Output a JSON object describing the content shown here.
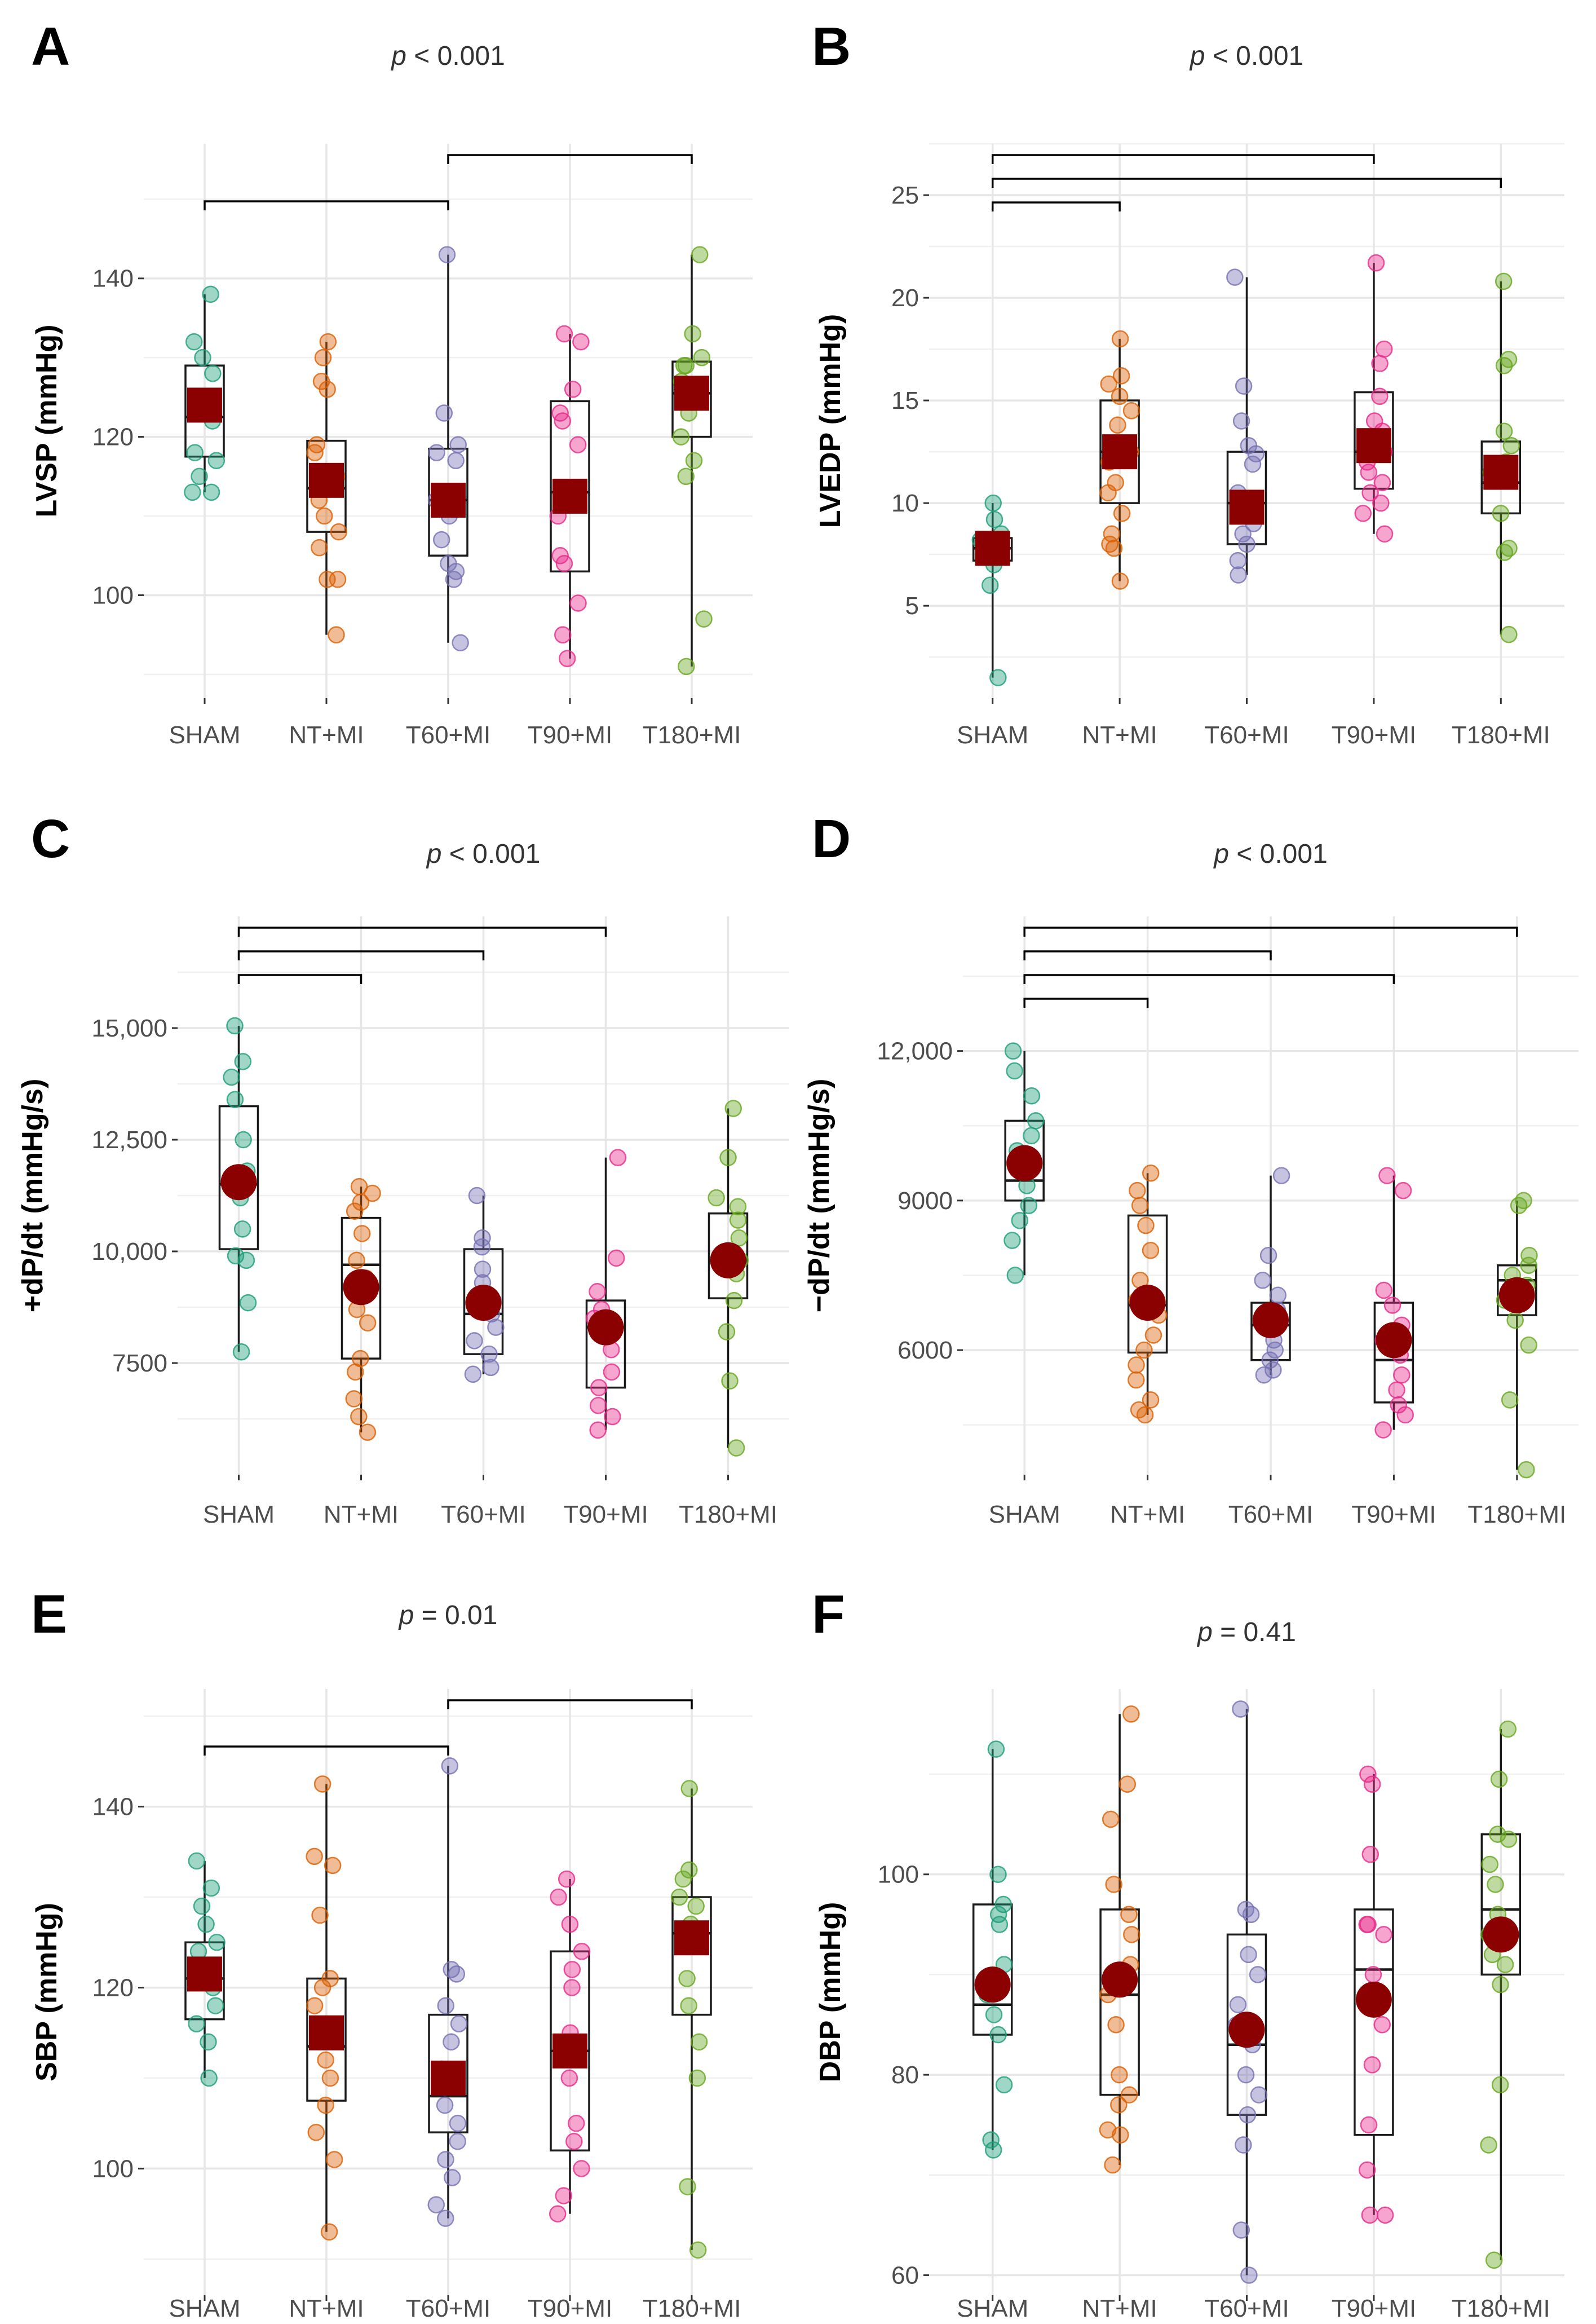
{
  "figure": {
    "group_colors": {
      "SHAM": "#1b9e77",
      "NT+MI": "#d95f02",
      "T60+MI": "#7570b3",
      "T90+MI": "#e7298a",
      "T180+MI": "#66a61e"
    },
    "mean_marker_color": "#8b0000"
  },
  "chart_data": [
    {
      "panel": "A",
      "type": "boxplot",
      "p_label": "p < 0.001",
      "ylabel": "LVSP (mmHg)",
      "categories": [
        "SHAM",
        "NT+MI",
        "T60+MI",
        "T90+MI",
        "T180+MI"
      ],
      "ylim": [
        87,
        157
      ],
      "yticks": [
        100,
        120,
        140
      ],
      "ytick_labels": [
        "100",
        "120",
        "140"
      ],
      "mean_shape": "square",
      "boxes": [
        {
          "group": "SHAM",
          "min": 113,
          "q1": 117.5,
          "median": 122.5,
          "q3": 129,
          "max": 138,
          "mean": 124
        },
        {
          "group": "NT+MI",
          "min": 95,
          "q1": 108,
          "median": 113.5,
          "q3": 119.5,
          "max": 132,
          "mean": 114.5
        },
        {
          "group": "T60+MI",
          "min": 94,
          "q1": 105,
          "median": 112,
          "q3": 118.5,
          "max": 143,
          "mean": 112
        },
        {
          "group": "T90+MI",
          "min": 92,
          "q1": 103,
          "median": 113,
          "q3": 124.5,
          "max": 133,
          "mean": 112.5
        },
        {
          "group": "T180+MI",
          "min": 91,
          "q1": 120,
          "median": 125.5,
          "q3": 129.5,
          "max": 143,
          "mean": 125.5
        }
      ],
      "points": [
        [
          138,
          132,
          130,
          128,
          125,
          122,
          118,
          117,
          115,
          113,
          113
        ],
        [
          132,
          130,
          127,
          126,
          119,
          118,
          115,
          112,
          110,
          108,
          106,
          102,
          102,
          95
        ],
        [
          143,
          123,
          119,
          118,
          117,
          112,
          110,
          107,
          104,
          103,
          102,
          94
        ],
        [
          133,
          132,
          126,
          123,
          122,
          119,
          113,
          110,
          105,
          104,
          99,
          95,
          92
        ],
        [
          143,
          133,
          130,
          129,
          129,
          127,
          123,
          120,
          117,
          115,
          97,
          91
        ]
      ],
      "comparisons": [
        [
          0,
          2
        ],
        [
          2,
          4
        ]
      ]
    },
    {
      "panel": "B",
      "type": "boxplot",
      "p_label": "p < 0.001",
      "ylabel": "LVEDP (mmHg)",
      "categories": [
        "SHAM",
        "NT+MI",
        "T60+MI",
        "T90+MI",
        "T180+MI"
      ],
      "ylim": [
        0.5,
        27.5
      ],
      "yticks": [
        5,
        10,
        15,
        20,
        25
      ],
      "ytick_labels": [
        "5",
        "10",
        "15",
        "20",
        "25"
      ],
      "mean_shape": "square",
      "boxes": [
        {
          "group": "SHAM",
          "min": 1.5,
          "q1": 7.2,
          "median": 7.8,
          "q3": 8.3,
          "max": 10,
          "mean": 7.8
        },
        {
          "group": "NT+MI",
          "min": 6.2,
          "q1": 10,
          "median": 12.5,
          "q3": 15,
          "max": 18,
          "mean": 12.5
        },
        {
          "group": "T60+MI",
          "min": 6.5,
          "q1": 8,
          "median": 10,
          "q3": 12.5,
          "max": 21,
          "mean": 9.8
        },
        {
          "group": "T90+MI",
          "min": 8.5,
          "q1": 10.7,
          "median": 12.5,
          "q3": 15.4,
          "max": 21.7,
          "mean": 12.8
        },
        {
          "group": "T180+MI",
          "min": 3.6,
          "q1": 9.5,
          "median": 11,
          "q3": 13,
          "max": 20.8,
          "mean": 11.5
        }
      ],
      "points": [
        [
          10,
          9.2,
          8.5,
          8.2,
          8,
          7.8,
          7.5,
          7,
          6,
          1.5
        ],
        [
          18,
          16.2,
          15.8,
          15.2,
          14.5,
          13.8,
          12.5,
          12,
          11,
          10.5,
          9.5,
          8.5,
          8,
          7.8,
          6.2
        ],
        [
          21,
          15.7,
          14,
          12.8,
          12.4,
          11.9,
          10.5,
          9.8,
          9,
          8.5,
          8,
          7.2,
          6.5
        ],
        [
          21.7,
          17.5,
          16.8,
          15.2,
          14,
          13.5,
          12.5,
          12,
          11.5,
          11,
          10.5,
          10,
          9.5,
          8.5
        ],
        [
          20.8,
          17,
          16.7,
          13.5,
          12.8,
          12,
          11.5,
          9.5,
          7.8,
          7.6,
          3.6
        ]
      ],
      "comparisons": [
        [
          0,
          1
        ],
        [
          0,
          4
        ],
        [
          0,
          3
        ]
      ]
    },
    {
      "panel": "C",
      "type": "boxplot",
      "p_label": "p < 0.001",
      "ylabel": "+dP/dt (mmHg/s)",
      "categories": [
        "SHAM",
        "NT+MI",
        "T60+MI",
        "T90+MI",
        "T180+MI"
      ],
      "ylim": [
        5000,
        17500
      ],
      "yticks": [
        7500,
        10000,
        12500,
        15000
      ],
      "ytick_labels": [
        "7500",
        "10,000",
        "12,500",
        "15,000"
      ],
      "mean_shape": "circle",
      "boxes": [
        {
          "group": "SHAM",
          "min": 7750,
          "q1": 10050,
          "median": 11500,
          "q3": 13250,
          "max": 15050,
          "mean": 11550
        },
        {
          "group": "NT+MI",
          "min": 5950,
          "q1": 7600,
          "median": 9700,
          "q3": 10750,
          "max": 11450,
          "mean": 9200
        },
        {
          "group": "T60+MI",
          "min": 7250,
          "q1": 7700,
          "median": 8600,
          "q3": 10050,
          "max": 11250,
          "mean": 8850
        },
        {
          "group": "T90+MI",
          "min": 6000,
          "q1": 6950,
          "median": 8300,
          "q3": 8900,
          "max": 12100,
          "mean": 8300
        },
        {
          "group": "T180+MI",
          "min": 5600,
          "q1": 8950,
          "median": 9800,
          "q3": 10850,
          "max": 13200,
          "mean": 9800
        }
      ],
      "points": [
        [
          15050,
          14250,
          13900,
          13400,
          12500,
          11800,
          11200,
          10500,
          9900,
          9800,
          8850,
          7750
        ],
        [
          11450,
          11300,
          11100,
          10900,
          10400,
          9800,
          9400,
          9100,
          8700,
          8400,
          7600,
          7300,
          6700,
          6300,
          5950
        ],
        [
          11250,
          10300,
          10100,
          9600,
          9300,
          8900,
          8600,
          8300,
          8000,
          7700,
          7400,
          7250
        ],
        [
          12100,
          9850,
          9100,
          8700,
          8500,
          8200,
          7800,
          7300,
          6950,
          6550,
          6300,
          6000
        ],
        [
          13200,
          12100,
          11200,
          11000,
          10700,
          10300,
          9800,
          9500,
          8900,
          8200,
          7100,
          5600
        ]
      ],
      "comparisons": [
        [
          0,
          1
        ],
        [
          0,
          2
        ],
        [
          0,
          3
        ]
      ]
    },
    {
      "panel": "D",
      "type": "boxplot",
      "p_label": "p < 0.001",
      "ylabel": "−dP/dt (mmHg/s)",
      "categories": [
        "SHAM",
        "NT+MI",
        "T60+MI",
        "T90+MI",
        "T180+MI"
      ],
      "ylim": [
        3500,
        14700
      ],
      "yticks": [
        6000,
        9000,
        12000
      ],
      "ytick_labels": [
        "6000",
        "9000",
        "12,000"
      ],
      "mean_shape": "circle",
      "boxes": [
        {
          "group": "SHAM",
          "min": 7500,
          "q1": 9000,
          "median": 9400,
          "q3": 10600,
          "max": 12000,
          "mean": 9750
        },
        {
          "group": "NT+MI",
          "min": 4700,
          "q1": 5950,
          "median": 6900,
          "q3": 8700,
          "max": 9550,
          "mean": 6950
        },
        {
          "group": "T60+MI",
          "min": 5500,
          "q1": 5800,
          "median": 6500,
          "q3": 6950,
          "max": 9500,
          "mean": 6600
        },
        {
          "group": "T90+MI",
          "min": 4400,
          "q1": 4950,
          "median": 5800,
          "q3": 6950,
          "max": 9500,
          "mean": 6200
        },
        {
          "group": "T180+MI",
          "min": 3600,
          "q1": 6700,
          "median": 7400,
          "q3": 7700,
          "max": 9000,
          "mean": 7100
        }
      ],
      "points": [
        [
          12000,
          11600,
          11100,
          10600,
          10300,
          10000,
          9700,
          9300,
          8900,
          8600,
          8200,
          7500
        ],
        [
          9550,
          9200,
          8900,
          8500,
          8000,
          7400,
          7000,
          6700,
          6300,
          6000,
          5700,
          5400,
          5000,
          4800,
          4700
        ],
        [
          9500,
          7900,
          7400,
          7100,
          6800,
          6500,
          6200,
          6000,
          5800,
          5600,
          5500
        ],
        [
          9500,
          9200,
          7200,
          6900,
          6500,
          6200,
          5900,
          5500,
          5200,
          4900,
          4700,
          4400
        ],
        [
          9000,
          8900,
          7900,
          7700,
          7500,
          7300,
          7200,
          7000,
          6600,
          6100,
          5000,
          3600
        ]
      ],
      "comparisons": [
        [
          0,
          1
        ],
        [
          0,
          3
        ],
        [
          0,
          2
        ],
        [
          0,
          4
        ]
      ]
    },
    {
      "panel": "E",
      "type": "boxplot",
      "p_label": "p = 0.01",
      "ylabel": "SBP (mmHg)",
      "categories": [
        "SHAM",
        "NT+MI",
        "T60+MI",
        "T90+MI",
        "T180+MI"
      ],
      "ylim": [
        86,
        153
      ],
      "yticks": [
        100,
        120,
        140
      ],
      "ytick_labels": [
        "100",
        "120",
        "140"
      ],
      "mean_shape": "square",
      "boxes": [
        {
          "group": "SHAM",
          "min": 110,
          "q1": 116.5,
          "median": 121,
          "q3": 125,
          "max": 134,
          "mean": 121.5
        },
        {
          "group": "NT+MI",
          "min": 93,
          "q1": 107.5,
          "median": 113.5,
          "q3": 121,
          "max": 142.5,
          "mean": 115
        },
        {
          "group": "T60+MI",
          "min": 94.5,
          "q1": 104,
          "median": 108,
          "q3": 117,
          "max": 144.5,
          "mean": 110
        },
        {
          "group": "T90+MI",
          "min": 95,
          "q1": 102,
          "median": 113,
          "q3": 124,
          "max": 132,
          "mean": 113
        },
        {
          "group": "T180+MI",
          "min": 91,
          "q1": 117,
          "median": 126,
          "q3": 130,
          "max": 142,
          "mean": 125.5
        }
      ],
      "points": [
        [
          134,
          131,
          129,
          127,
          125,
          124,
          122,
          120,
          118,
          116,
          114,
          110
        ],
        [
          142.5,
          134.5,
          133.5,
          128,
          121,
          120,
          118,
          115,
          112,
          110,
          107,
          104,
          101,
          93
        ],
        [
          144.5,
          122,
          121.5,
          118,
          116,
          114,
          111,
          109,
          107,
          105,
          103,
          101,
          99,
          96,
          94.5
        ],
        [
          132,
          130,
          127,
          124,
          122,
          120,
          115,
          110,
          105,
          103,
          100,
          97,
          95
        ],
        [
          142,
          133,
          132,
          130,
          129,
          127,
          125,
          121,
          118,
          114,
          110,
          98,
          91
        ]
      ],
      "comparisons": [
        [
          0,
          2
        ],
        [
          2,
          4
        ]
      ]
    },
    {
      "panel": "F",
      "type": "boxplot",
      "p_label": "p = 0.41",
      "ylabel": "DBP (mmHg)",
      "categories": [
        "SHAM",
        "NT+MI",
        "T60+MI",
        "T90+MI",
        "T180+MI"
      ],
      "ylim": [
        58,
        118.5
      ],
      "yticks": [
        60,
        80,
        100
      ],
      "ytick_labels": [
        "60",
        "80",
        "100"
      ],
      "mean_shape": "circle",
      "boxes": [
        {
          "group": "SHAM",
          "min": 72.5,
          "q1": 84,
          "median": 87,
          "q3": 97,
          "max": 112.5,
          "mean": 89
        },
        {
          "group": "NT+MI",
          "min": 71,
          "q1": 78,
          "median": 88,
          "q3": 96.5,
          "max": 116,
          "mean": 89.5
        },
        {
          "group": "T60+MI",
          "min": 60,
          "q1": 76,
          "median": 83,
          "q3": 94,
          "max": 116.5,
          "mean": 84.5
        },
        {
          "group": "T90+MI",
          "min": 66,
          "q1": 74,
          "median": 90.5,
          "q3": 96.5,
          "max": 110,
          "mean": 87.5
        },
        {
          "group": "T180+MI",
          "min": 61.5,
          "q1": 90,
          "median": 96.5,
          "q3": 104,
          "max": 114.5,
          "mean": 94
        }
      ],
      "points": [
        [
          112.5,
          100,
          97,
          96,
          95,
          91,
          88,
          86,
          84,
          79,
          73.5,
          72.5
        ],
        [
          116,
          109,
          105.5,
          99,
          96,
          94,
          91,
          88,
          85,
          80,
          78,
          77,
          74.5,
          74,
          71
        ],
        [
          116.5,
          96.5,
          96,
          92,
          90,
          87,
          85,
          83,
          80,
          78,
          76,
          73,
          64.5,
          60
        ],
        [
          110,
          109,
          102,
          95,
          95,
          94,
          90,
          87,
          85,
          81,
          75,
          70.5,
          66,
          66
        ],
        [
          114.5,
          109.5,
          104,
          103.5,
          101,
          99,
          96,
          94,
          92,
          91,
          89,
          79,
          73,
          61.5
        ]
      ],
      "comparisons": []
    }
  ]
}
